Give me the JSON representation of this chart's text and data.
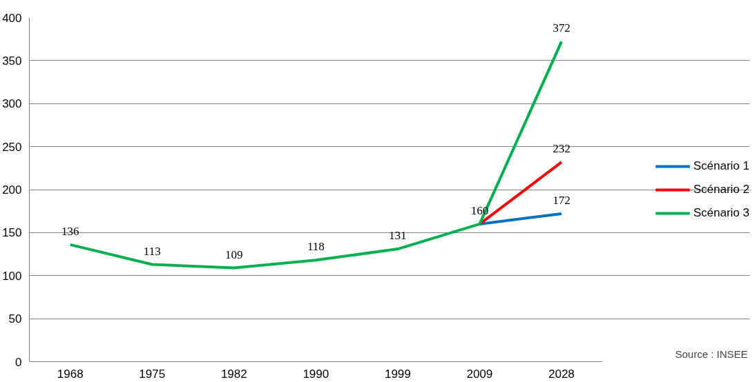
{
  "chart_data": {
    "type": "line",
    "categories": [
      "1968",
      "1975",
      "1982",
      "1990",
      "1999",
      "2009",
      "2028"
    ],
    "series": [
      {
        "name": "Scénario 1",
        "color": "#0070c0",
        "values": [
          null,
          null,
          null,
          null,
          null,
          160,
          172
        ],
        "value_labels": [
          null,
          null,
          null,
          null,
          null,
          null,
          "172"
        ]
      },
      {
        "name": "Scénario 2",
        "color": "#ff0000",
        "values": [
          null,
          null,
          null,
          null,
          null,
          160,
          232
        ],
        "value_labels": [
          null,
          null,
          null,
          null,
          null,
          null,
          "232"
        ]
      },
      {
        "name": "Scénario 3",
        "color": "#00b050",
        "values": [
          136,
          113,
          109,
          118,
          131,
          160,
          372
        ],
        "value_labels": [
          "136",
          "113",
          "109",
          "118",
          "131",
          "160",
          "372"
        ]
      }
    ],
    "ylim": [
      0,
      400
    ],
    "yticks": [
      0,
      50,
      100,
      150,
      200,
      250,
      300,
      350,
      400
    ],
    "grid": "y",
    "legend": "right",
    "marker": "none",
    "line_style": "solid",
    "annotations": [
      "Source : INSEE"
    ]
  }
}
